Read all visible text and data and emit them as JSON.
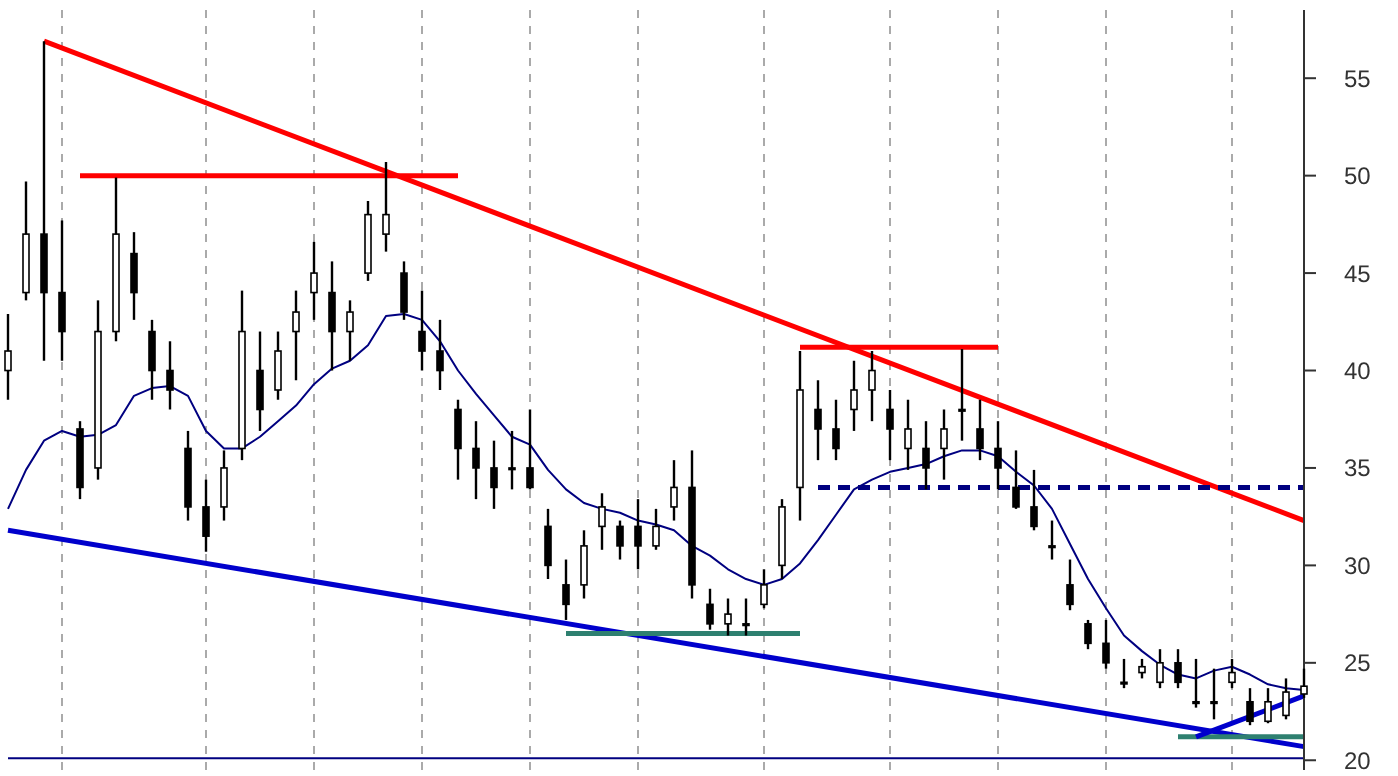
{
  "chart_data": {
    "type": "candlestick",
    "color": "#000000",
    "categories": [
      null,
      null,
      null,
      null,
      null,
      null,
      null,
      null,
      null,
      null,
      null,
      null,
      null,
      null,
      null,
      null,
      null,
      null,
      null,
      null,
      null,
      null,
      null,
      null,
      null,
      null,
      null,
      null,
      null,
      null,
      null,
      null,
      null,
      null,
      null,
      null,
      null,
      null,
      null,
      null,
      null,
      null,
      null,
      null,
      null,
      null,
      null,
      null,
      null,
      null,
      null,
      null,
      null,
      null,
      null,
      null,
      null,
      null,
      null,
      null,
      null,
      null,
      null,
      null,
      null,
      null,
      null,
      null,
      null,
      null,
      null,
      null,
      null
    ],
    "ohlc": [
      [
        40,
        42.9,
        38.5,
        41
      ],
      [
        44,
        49.7,
        43.6,
        47
      ],
      [
        47,
        56.9,
        40.5,
        44
      ],
      [
        44,
        47.7,
        40.5,
        42
      ],
      [
        37,
        37.4,
        33.4,
        34
      ],
      [
        35,
        43.6,
        34.4,
        42
      ],
      [
        42,
        49.9,
        41.5,
        47
      ],
      [
        46,
        47.1,
        42.6,
        44
      ],
      [
        42,
        42.6,
        38.5,
        40
      ],
      [
        40,
        41.5,
        38,
        39
      ],
      [
        36,
        36.9,
        32.3,
        33
      ],
      [
        33,
        34.4,
        30.7,
        31.5
      ],
      [
        33,
        35.9,
        32.3,
        35
      ],
      [
        36,
        44.1,
        35.4,
        42
      ],
      [
        40,
        42,
        36.9,
        38
      ],
      [
        39,
        42,
        38.5,
        41
      ],
      [
        42,
        44.1,
        39.5,
        43
      ],
      [
        44,
        46.6,
        42.6,
        45
      ],
      [
        44,
        45.6,
        40,
        42
      ],
      [
        42,
        43.6,
        40.5,
        43
      ],
      [
        45,
        48.7,
        44.6,
        48
      ],
      [
        47,
        50.7,
        46.1,
        48
      ],
      [
        45,
        45.6,
        42.6,
        43
      ],
      [
        42,
        44.1,
        40,
        41
      ],
      [
        41,
        42.6,
        39,
        40
      ],
      [
        38,
        38.5,
        34.4,
        36
      ],
      [
        36,
        37.4,
        33.4,
        35
      ],
      [
        35,
        36.4,
        32.9,
        34
      ],
      [
        35,
        36.9,
        33.9,
        35
      ],
      [
        35,
        38,
        33.9,
        34
      ],
      [
        32,
        32.9,
        29.3,
        30
      ],
      [
        29,
        30.3,
        27.2,
        28
      ],
      [
        29,
        31.8,
        28.3,
        31
      ],
      [
        32,
        33.7,
        30.8,
        33
      ],
      [
        32,
        32.3,
        30.3,
        31
      ],
      [
        32,
        33.4,
        29.8,
        31
      ],
      [
        31,
        32.9,
        30.8,
        32
      ],
      [
        33,
        35.4,
        32.3,
        34
      ],
      [
        34,
        35.9,
        28.3,
        29
      ],
      [
        28,
        28.8,
        26.7,
        27
      ],
      [
        27,
        28.3,
        26.4,
        27.5
      ],
      [
        27,
        28.3,
        26.4,
        27
      ],
      [
        28,
        29.8,
        27.8,
        29
      ],
      [
        30,
        33.4,
        29.3,
        33
      ],
      [
        34,
        41,
        32.3,
        39
      ],
      [
        38,
        39.5,
        35.4,
        37
      ],
      [
        37,
        38.5,
        35.4,
        36
      ],
      [
        38,
        40.5,
        36.9,
        39
      ],
      [
        39,
        41,
        37.4,
        40
      ],
      [
        38,
        39,
        35.4,
        37
      ],
      [
        36,
        38.5,
        34.9,
        37
      ],
      [
        36,
        37.4,
        33.9,
        35
      ],
      [
        36,
        38,
        34.4,
        37
      ],
      [
        38,
        41.1,
        36.4,
        38
      ],
      [
        37,
        38.5,
        35.4,
        36
      ],
      [
        36,
        37.4,
        33.9,
        35
      ],
      [
        34,
        35.9,
        32.9,
        33
      ],
      [
        33,
        34.9,
        31.8,
        32
      ],
      [
        31,
        32.3,
        30.3,
        31
      ],
      [
        29,
        30.3,
        27.7,
        28
      ],
      [
        27,
        27.2,
        25.7,
        26
      ],
      [
        26,
        27.2,
        24.7,
        25
      ],
      [
        24,
        25.2,
        23.7,
        24
      ],
      [
        24.5,
        25.2,
        24.2,
        24.8
      ],
      [
        24,
        25.7,
        23.7,
        25
      ],
      [
        25,
        25.7,
        23.7,
        24
      ],
      [
        23,
        25.2,
        22.7,
        23
      ],
      [
        23,
        24.7,
        22.1,
        23
      ],
      [
        24,
        25.2,
        23.7,
        24.5
      ],
      [
        23,
        23.7,
        21.8,
        22
      ],
      [
        22,
        23.7,
        21.9,
        23
      ],
      [
        22.3,
        24.2,
        22.1,
        23.5
      ],
      [
        23.4,
        24.7,
        23.2,
        23.8
      ]
    ],
    "series": [
      {
        "type": "line",
        "color": "#000080",
        "values": [
          32.9,
          34.9,
          36.4,
          36.9,
          36.6,
          36.7,
          37.2,
          38.7,
          39.1,
          39.2,
          38.7,
          36.9,
          36,
          36,
          36.6,
          37.4,
          38.2,
          39.3,
          40.1,
          40.5,
          41.3,
          42.8,
          42.9,
          42.6,
          41.5,
          40,
          38.8,
          37.7,
          36.6,
          36.2,
          34.9,
          33.9,
          33.2,
          32.9,
          32.7,
          32.3,
          32.1,
          31.8,
          31,
          30.5,
          29.8,
          29.3,
          29,
          29.3,
          30.1,
          31.3,
          32.6,
          33.9,
          34.4,
          34.8,
          35,
          35.2,
          35.6,
          35.9,
          35.9,
          35.6,
          34.8,
          34.1,
          32.9,
          31.1,
          29.3,
          27.8,
          26.4,
          25.6,
          24.9,
          24.4,
          24.2,
          24.6,
          24.8,
          24.4,
          23.9,
          23.7,
          23.6
        ]
      },
      {
        "type": "line",
        "color": "#ff0000",
        "values": [
          null,
          null,
          56.9,
          null,
          null,
          null,
          null,
          null,
          null,
          null,
          null,
          null,
          null,
          null,
          null,
          null,
          null,
          null,
          null,
          null,
          null,
          null,
          null,
          null,
          null,
          null,
          null,
          null,
          null,
          null,
          null,
          null,
          null,
          null,
          null,
          null,
          null,
          null,
          null,
          null,
          null,
          null,
          null,
          null,
          null,
          null,
          null,
          null,
          null,
          null,
          null,
          null,
          null,
          null,
          null,
          null,
          null,
          null,
          null,
          null,
          null,
          null,
          null,
          null,
          null,
          null,
          null,
          null,
          null,
          null,
          null,
          null,
          32.3
        ]
      },
      {
        "type": "line",
        "color": "#ff0000",
        "values": [
          null,
          null,
          null,
          null,
          50,
          null,
          null,
          null,
          null,
          null,
          null,
          null,
          null,
          null,
          null,
          null,
          null,
          null,
          null,
          null,
          null,
          null,
          null,
          null,
          null,
          50,
          null,
          null,
          null,
          null,
          null,
          null,
          null,
          null,
          null,
          null,
          null,
          null,
          null,
          null,
          null,
          null,
          null,
          null,
          null,
          null,
          null,
          null,
          null,
          null,
          null,
          null,
          null,
          null,
          null,
          null,
          null,
          null,
          null,
          null,
          null,
          null,
          null,
          null,
          null,
          null,
          null,
          null,
          null,
          null,
          null,
          null,
          null
        ]
      },
      {
        "type": "line",
        "color": "#ff0000",
        "values": [
          null,
          null,
          null,
          null,
          null,
          null,
          null,
          null,
          null,
          null,
          null,
          null,
          null,
          null,
          null,
          null,
          null,
          null,
          null,
          null,
          null,
          null,
          null,
          null,
          null,
          null,
          null,
          null,
          null,
          null,
          null,
          null,
          null,
          null,
          null,
          null,
          null,
          null,
          null,
          null,
          null,
          null,
          null,
          null,
          41.2,
          null,
          null,
          null,
          null,
          null,
          null,
          null,
          null,
          null,
          null,
          41.2,
          null,
          null,
          null,
          null,
          null,
          null,
          null,
          null,
          null,
          null,
          null,
          null,
          null,
          null,
          null,
          null,
          null
        ]
      },
      {
        "type": "line",
        "color": "#0000cc",
        "values": [
          31.8,
          null,
          null,
          null,
          null,
          null,
          null,
          null,
          null,
          null,
          null,
          null,
          null,
          null,
          null,
          null,
          null,
          null,
          null,
          null,
          null,
          null,
          null,
          null,
          null,
          null,
          null,
          null,
          null,
          null,
          null,
          null,
          null,
          null,
          null,
          null,
          null,
          null,
          null,
          null,
          null,
          null,
          null,
          null,
          null,
          null,
          null,
          null,
          null,
          null,
          null,
          null,
          null,
          null,
          null,
          null,
          null,
          null,
          null,
          null,
          null,
          null,
          null,
          null,
          null,
          null,
          null,
          null,
          null,
          null,
          null,
          null,
          20.7
        ]
      },
      {
        "type": "line",
        "color": "#2e8070",
        "values": [
          null,
          null,
          null,
          null,
          null,
          null,
          null,
          null,
          null,
          null,
          null,
          null,
          null,
          null,
          null,
          null,
          null,
          null,
          null,
          null,
          null,
          null,
          null,
          null,
          null,
          null,
          null,
          null,
          null,
          null,
          null,
          26.5,
          null,
          null,
          null,
          null,
          null,
          null,
          null,
          null,
          null,
          null,
          null,
          null,
          26.5,
          null,
          null,
          null,
          null,
          null,
          null,
          null,
          null,
          null,
          null,
          null,
          null,
          null,
          null,
          null,
          null,
          null,
          null,
          null,
          null,
          null,
          null,
          null,
          null,
          null,
          null,
          null,
          null
        ]
      },
      {
        "type": "line",
        "color": "#2e8070",
        "values": [
          null,
          null,
          null,
          null,
          null,
          null,
          null,
          null,
          null,
          null,
          null,
          null,
          null,
          null,
          null,
          null,
          null,
          null,
          null,
          null,
          null,
          null,
          null,
          null,
          null,
          null,
          null,
          null,
          null,
          null,
          null,
          null,
          null,
          null,
          null,
          null,
          null,
          null,
          null,
          null,
          null,
          null,
          null,
          null,
          null,
          null,
          null,
          null,
          null,
          null,
          null,
          null,
          null,
          null,
          null,
          null,
          null,
          null,
          null,
          null,
          null,
          null,
          null,
          null,
          null,
          21.2,
          null,
          null,
          null,
          null,
          null,
          null,
          21.2
        ]
      },
      {
        "type": "line",
        "color": "#0000cc",
        "values": [
          null,
          null,
          null,
          null,
          null,
          null,
          null,
          null,
          null,
          null,
          null,
          null,
          null,
          null,
          null,
          null,
          null,
          null,
          null,
          null,
          null,
          null,
          null,
          null,
          null,
          null,
          null,
          null,
          null,
          null,
          null,
          null,
          null,
          null,
          null,
          null,
          null,
          null,
          null,
          null,
          null,
          null,
          null,
          null,
          null,
          null,
          null,
          null,
          null,
          null,
          null,
          null,
          null,
          null,
          null,
          null,
          null,
          null,
          null,
          null,
          null,
          null,
          null,
          null,
          null,
          null,
          21.2,
          null,
          null,
          null,
          null,
          null,
          23.3
        ]
      },
      {
        "type": "line",
        "color": "#000080",
        "line_style": "dashed",
        "values": [
          null,
          null,
          null,
          null,
          null,
          null,
          null,
          null,
          null,
          null,
          null,
          null,
          null,
          null,
          null,
          null,
          null,
          null,
          null,
          null,
          null,
          null,
          null,
          null,
          null,
          null,
          null,
          null,
          null,
          null,
          null,
          null,
          null,
          null,
          null,
          null,
          null,
          null,
          null,
          null,
          null,
          null,
          null,
          null,
          null,
          34,
          null,
          null,
          null,
          null,
          null,
          null,
          null,
          null,
          null,
          null,
          null,
          null,
          null,
          null,
          null,
          null,
          null,
          null,
          null,
          null,
          null,
          null,
          null,
          null,
          null,
          null,
          34
        ]
      }
    ],
    "ylim": [
      19.5,
      58.5
    ],
    "yticks": [
      20,
      25,
      30,
      35,
      40,
      45,
      50,
      55
    ],
    "tick_labels": "y",
    "marker": "none",
    "grid": "x",
    "ref_lines": [
      {
        "axis": "y",
        "value": 20.1,
        "color": "#000080"
      }
    ]
  }
}
